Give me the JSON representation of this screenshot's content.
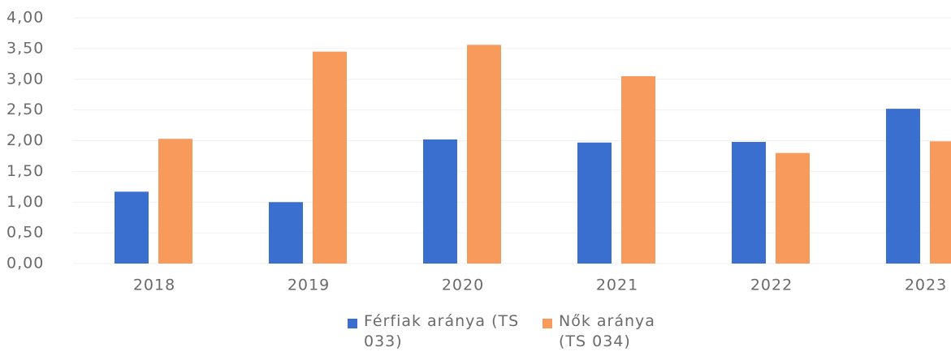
{
  "chart_data": {
    "type": "bar",
    "categories": [
      "2018",
      "2019",
      "2020",
      "2021",
      "2022",
      "2023"
    ],
    "series": [
      {
        "name": "Férfiak aránya (TS 033)",
        "color": "#3a6fcf",
        "values": [
          1.17,
          1.0,
          2.02,
          1.97,
          1.98,
          2.52
        ]
      },
      {
        "name": "Nők aránya (TS 034)",
        "color": "#f79a5c",
        "values": [
          2.03,
          3.45,
          3.56,
          3.05,
          1.8,
          1.99
        ]
      }
    ],
    "ylim": [
      0,
      4
    ],
    "yticks": [
      {
        "value": 0,
        "label": "0,00"
      },
      {
        "value": 0.5,
        "label": "0,50"
      },
      {
        "value": 1,
        "label": "1,00"
      },
      {
        "value": 1.5,
        "label": "1,50"
      },
      {
        "value": 2,
        "label": "2,00"
      },
      {
        "value": 2.5,
        "label": "2,50"
      },
      {
        "value": 3,
        "label": "3,00"
      },
      {
        "value": 3.5,
        "label": "3,50"
      },
      {
        "value": 4,
        "label": "4,00"
      }
    ],
    "grid": true,
    "legend": "bottom"
  }
}
